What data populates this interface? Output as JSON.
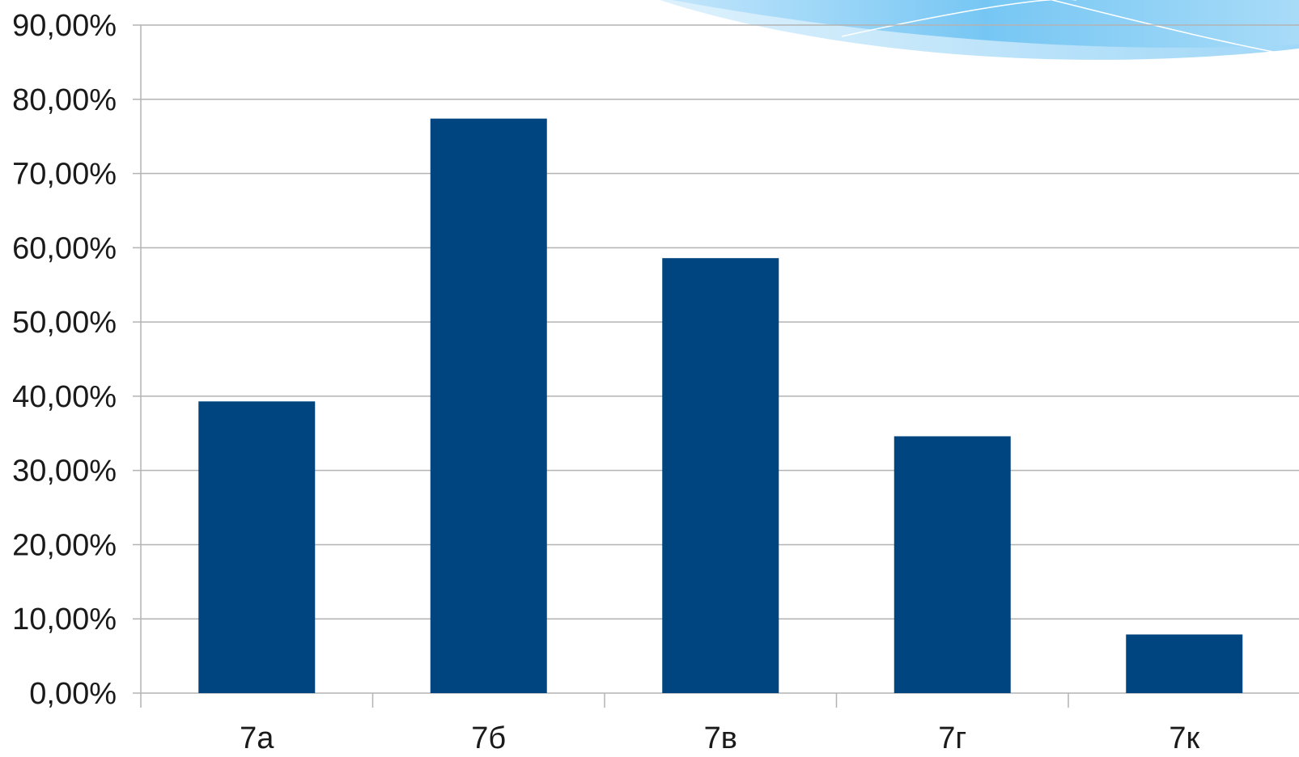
{
  "chart_data": {
    "type": "bar",
    "categories": [
      "7а",
      "7б",
      "7в",
      "7г",
      "7к"
    ],
    "values": [
      39.3,
      77.4,
      58.6,
      34.6,
      7.9
    ],
    "ylim": [
      0,
      90
    ],
    "yticks": [
      0,
      10,
      20,
      30,
      40,
      50,
      60,
      70,
      80,
      90
    ],
    "ytick_labels": [
      "0,00%",
      "10,00%",
      "20,00%",
      "30,00%",
      "40,00%",
      "50,00%",
      "60,00%",
      "70,00%",
      "80,00%",
      "90,00%"
    ],
    "grid": true,
    "bar_color": "#00457f",
    "grid_color": "#b3b3b3",
    "decoration": "blue-swoosh-top-right"
  }
}
